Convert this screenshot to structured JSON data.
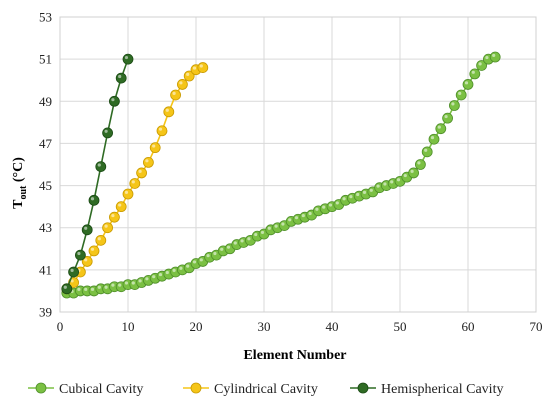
{
  "chart_data": {
    "type": "line",
    "title": "",
    "xlabel": "Element Number",
    "ylabel_main": "T",
    "ylabel_sub": "out",
    "ylabel_unit": " (°C)",
    "xlim": [
      0,
      70
    ],
    "ylim": [
      39,
      53
    ],
    "x_ticks": [
      0,
      10,
      20,
      30,
      40,
      50,
      60,
      70
    ],
    "y_ticks": [
      39,
      41,
      43,
      45,
      47,
      49,
      51,
      53
    ],
    "grid": true,
    "legend_position": "bottom",
    "series": [
      {
        "name": "Cubical Cavity",
        "line_color": "#7bc043",
        "marker_fill": "#7bc043",
        "marker_stroke": "#4f8f2a",
        "points": [
          [
            1,
            39.9
          ],
          [
            2,
            39.9
          ],
          [
            3,
            40.0
          ],
          [
            4,
            40.0
          ],
          [
            5,
            40.0
          ],
          [
            6,
            40.1
          ],
          [
            7,
            40.1
          ],
          [
            8,
            40.2
          ],
          [
            9,
            40.2
          ],
          [
            10,
            40.3
          ],
          [
            11,
            40.3
          ],
          [
            12,
            40.4
          ],
          [
            13,
            40.5
          ],
          [
            14,
            40.6
          ],
          [
            15,
            40.7
          ],
          [
            16,
            40.8
          ],
          [
            17,
            40.9
          ],
          [
            18,
            41.0
          ],
          [
            19,
            41.1
          ],
          [
            20,
            41.3
          ],
          [
            21,
            41.4
          ],
          [
            22,
            41.6
          ],
          [
            23,
            41.7
          ],
          [
            24,
            41.9
          ],
          [
            25,
            42.0
          ],
          [
            26,
            42.2
          ],
          [
            27,
            42.3
          ],
          [
            28,
            42.4
          ],
          [
            29,
            42.6
          ],
          [
            30,
            42.7
          ],
          [
            31,
            42.9
          ],
          [
            32,
            43.0
          ],
          [
            33,
            43.1
          ],
          [
            34,
            43.3
          ],
          [
            35,
            43.4
          ],
          [
            36,
            43.5
          ],
          [
            37,
            43.6
          ],
          [
            38,
            43.8
          ],
          [
            39,
            43.9
          ],
          [
            40,
            44.0
          ],
          [
            41,
            44.1
          ],
          [
            42,
            44.3
          ],
          [
            43,
            44.4
          ],
          [
            44,
            44.5
          ],
          [
            45,
            44.6
          ],
          [
            46,
            44.7
          ],
          [
            47,
            44.9
          ],
          [
            48,
            45.0
          ],
          [
            49,
            45.1
          ],
          [
            50,
            45.2
          ],
          [
            51,
            45.4
          ],
          [
            52,
            45.6
          ],
          [
            53,
            46.0
          ],
          [
            54,
            46.6
          ],
          [
            55,
            47.2
          ],
          [
            56,
            47.7
          ],
          [
            57,
            48.2
          ],
          [
            58,
            48.8
          ],
          [
            59,
            49.3
          ],
          [
            60,
            49.8
          ],
          [
            61,
            50.3
          ],
          [
            62,
            50.7
          ],
          [
            63,
            51.0
          ],
          [
            64,
            51.1
          ]
        ]
      },
      {
        "name": "Cylindrical Cavity",
        "line_color": "#f5c518",
        "marker_fill": "#f5c518",
        "marker_stroke": "#c99a00",
        "points": [
          [
            1,
            40.1
          ],
          [
            2,
            40.4
          ],
          [
            3,
            40.9
          ],
          [
            4,
            41.4
          ],
          [
            5,
            41.9
          ],
          [
            6,
            42.4
          ],
          [
            7,
            43.0
          ],
          [
            8,
            43.5
          ],
          [
            9,
            44.0
          ],
          [
            10,
            44.6
          ],
          [
            11,
            45.1
          ],
          [
            12,
            45.6
          ],
          [
            13,
            46.1
          ],
          [
            14,
            46.8
          ],
          [
            15,
            47.6
          ],
          [
            16,
            48.5
          ],
          [
            17,
            49.3
          ],
          [
            18,
            49.8
          ],
          [
            19,
            50.2
          ],
          [
            20,
            50.5
          ],
          [
            21,
            50.6
          ]
        ]
      },
      {
        "name": "Hemispherical Cavity",
        "line_color": "#2f6b24",
        "marker_fill": "#2f6b24",
        "marker_stroke": "#1a4a14",
        "points": [
          [
            1,
            40.1
          ],
          [
            2,
            40.9
          ],
          [
            3,
            41.7
          ],
          [
            4,
            42.9
          ],
          [
            5,
            44.3
          ],
          [
            6,
            45.9
          ],
          [
            7,
            47.5
          ],
          [
            8,
            49.0
          ],
          [
            9,
            50.1
          ],
          [
            10,
            51.0
          ]
        ]
      }
    ]
  }
}
